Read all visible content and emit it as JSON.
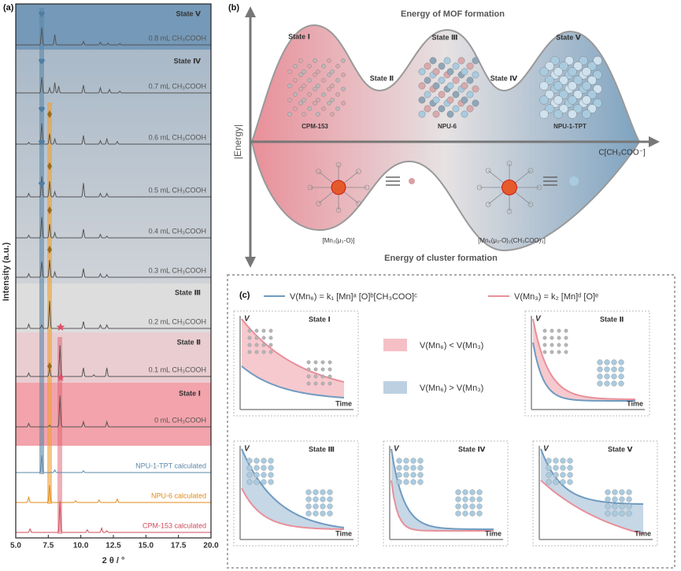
{
  "panel_a": {
    "label": "(a)",
    "y_label": "Intensity (a.u.)",
    "x_label": "2 θ / °",
    "xlim": [
      5,
      20
    ],
    "xticks": [
      {
        "value": 5,
        "label": "5.0"
      },
      {
        "value": 7.5,
        "label": "7.5"
      },
      {
        "value": 10,
        "label": "10.0"
      },
      {
        "value": 12.5,
        "label": "12.5"
      },
      {
        "value": 15,
        "label": "15.0"
      },
      {
        "value": 17.5,
        "label": "17.5"
      },
      {
        "value": 20,
        "label": "20.0"
      }
    ],
    "states": [
      "State Ⅴ",
      "State Ⅳ",
      "State Ⅲ",
      "State Ⅱ",
      "State Ⅰ"
    ],
    "traces": [
      {
        "name": "0.8 mL CH₃COOH",
        "color": "#555555",
        "peaks": [
          7.0,
          8.0,
          10.2,
          11.5,
          12.1,
          13.0
        ],
        "heights": [
          1.0,
          0.6,
          0.2,
          0.15,
          0.1,
          0.08
        ]
      },
      {
        "name": "0.7 mL CH₃COOH",
        "color": "#555555",
        "peaks": [
          7.0,
          7.6,
          8.0,
          8.3,
          10.2,
          11.5,
          12.2,
          13.0
        ],
        "heights": [
          0.9,
          0.3,
          0.6,
          0.4,
          0.45,
          0.3,
          0.2,
          0.1
        ]
      },
      {
        "name": "0.6 mL CH₃COOH",
        "color": "#555555",
        "peaks": [
          6.0,
          7.0,
          7.6,
          8.0,
          10.2,
          11.5,
          12.0,
          12.8
        ],
        "heights": [
          0.1,
          1.2,
          0.6,
          0.3,
          0.5,
          0.2,
          0.3,
          0.15
        ]
      },
      {
        "name": "0.5 mL CH₃COOH",
        "color": "#555555",
        "peaks": [
          6.0,
          7.0,
          7.6,
          8.0,
          10.2,
          11.5,
          12.0
        ],
        "heights": [
          0.2,
          1.2,
          0.9,
          0.3,
          0.8,
          0.2,
          0.2
        ]
      },
      {
        "name": "0.4 mL CH₃COOH",
        "color": "#555555",
        "peaks": [
          6.0,
          7.0,
          7.6,
          8.0,
          10.2,
          11.5,
          12.0
        ],
        "heights": [
          0.15,
          1.2,
          0.8,
          0.3,
          0.5,
          0.2,
          0.1
        ]
      },
      {
        "name": "0.3 mL CH₃COOH",
        "color": "#555555",
        "peaks": [
          6.0,
          7.0,
          7.6,
          8.0,
          10.2,
          11.5,
          12.0
        ],
        "heights": [
          0.2,
          0.9,
          1.0,
          0.3,
          0.5,
          0.2,
          0.15
        ]
      },
      {
        "name": "0.2 mL CH₃COOH",
        "color": "#555555",
        "peaks": [
          6.0,
          7.0,
          7.6,
          10.2,
          11.5,
          12.0
        ],
        "heights": [
          0.25,
          0.2,
          1.6,
          0.4,
          0.2,
          0.2
        ]
      },
      {
        "name": "0.1 mL CH₃COOH",
        "color": "#555555",
        "peaks": [
          6.0,
          7.6,
          8.4,
          10.2,
          11.0,
          12.0
        ],
        "heights": [
          0.2,
          0.5,
          1.8,
          0.5,
          0.1,
          0.5
        ]
      },
      {
        "name": "0 mL CH₃COOH",
        "color": "#555555",
        "peaks": [
          6.0,
          7.6,
          8.4,
          10.2,
          12.0
        ],
        "heights": [
          0.2,
          0.1,
          1.8,
          0.3,
          0.3
        ]
      },
      {
        "name": "NPU-1-TPT calculated",
        "color": "#5b87a8",
        "peaks": [
          7.0,
          8.0,
          10.2
        ],
        "heights": [
          1.0,
          0.15,
          0.1
        ]
      },
      {
        "name": "NPU-6 calculated",
        "color": "#e08a1a",
        "peaks": [
          6.0,
          7.6,
          9.6,
          11.4,
          12.8
        ],
        "heights": [
          0.3,
          1.0,
          0.1,
          0.15,
          0.2
        ]
      },
      {
        "name": "CPM-153 calculated",
        "color": "#d04a5a",
        "peaks": [
          6.1,
          8.4,
          10.5,
          11.6,
          12.0
        ],
        "heights": [
          0.2,
          1.8,
          0.15,
          0.25,
          0.1
        ]
      }
    ]
  },
  "panel_b": {
    "label": "(b)",
    "top_title": "Energy of MOF formation",
    "bottom_title": "Energy of cluster formation",
    "y_label": "|Energy|",
    "x_label": "C[CH₃COO⁻]",
    "states": [
      "State Ⅰ",
      "State Ⅱ",
      "State Ⅲ",
      "State Ⅳ",
      "State Ⅴ"
    ],
    "frameworks": [
      "CPM-153",
      "NPU-6",
      "NPU-1-TPT"
    ],
    "clusters": [
      "[Mn₃(μ₃-O)]",
      "[Mn₆(μ₃-O)₂(CH₃COO)₃]"
    ]
  },
  "panel_c": {
    "label": "(c)",
    "equation_mn6": "V(Mn₆) = k₁ [Mn]ᵃ [O]ᵇ[CH₃COO]ᶜ",
    "equation_mn3": "V(Mn₃) = k₂ [Mn]ᵈ [O]ᵉ",
    "legend": [
      "V(Mn₆) < V(Mn₃)",
      "V(Mn₆) > V(Mn₃)"
    ],
    "axis_y": "V",
    "axis_x": "Time",
    "plots": [
      "State Ⅰ",
      "State Ⅱ",
      "State Ⅲ",
      "State Ⅳ",
      "State Ⅴ"
    ]
  }
}
